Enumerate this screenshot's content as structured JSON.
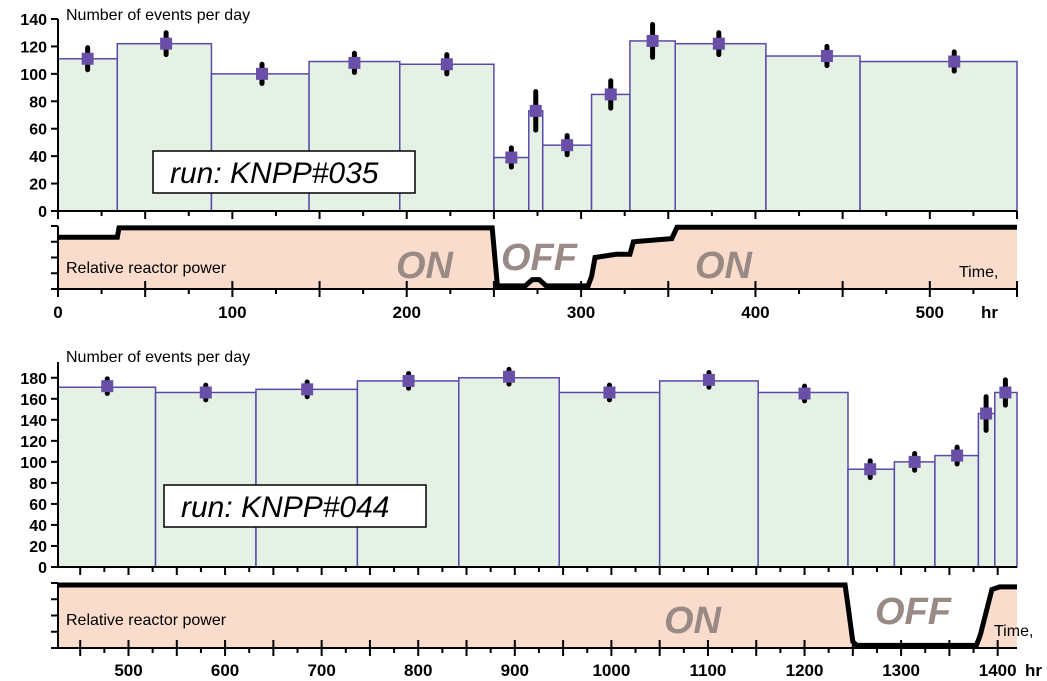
{
  "chart_data": [
    {
      "type": "bar",
      "panel": "top",
      "ylabel": "Number of events per day",
      "run_label": "run: KNPP#035",
      "ylim": [
        0,
        140
      ],
      "yticks": [
        0,
        20,
        40,
        60,
        80,
        100,
        120,
        140
      ],
      "xlim": [
        0,
        550
      ],
      "xticks": [
        0,
        100,
        200,
        300,
        400,
        500
      ],
      "x_unit": "hr",
      "bar_color": "#e4f1e4",
      "bar_edge_color": "#5a4aa8",
      "marker_color": "#6a4fa8",
      "bars": [
        {
          "x0": 0,
          "x1": 34,
          "value": 111
        },
        {
          "x0": 34,
          "x1": 88,
          "value": 122
        },
        {
          "x0": 88,
          "x1": 144,
          "value": 100
        },
        {
          "x0": 144,
          "x1": 196,
          "value": 109
        },
        {
          "x0": 196,
          "x1": 250,
          "value": 107
        },
        {
          "x0": 250,
          "x1": 270,
          "value": 39
        },
        {
          "x0": 270,
          "x1": 278,
          "value": 73
        },
        {
          "x0": 278,
          "x1": 306,
          "value": 48
        },
        {
          "x0": 306,
          "x1": 328,
          "value": 85
        },
        {
          "x0": 328,
          "x1": 354,
          "value": 124
        },
        {
          "x0": 354,
          "x1": 406,
          "value": 122
        },
        {
          "x0": 406,
          "x1": 460,
          "value": 113
        },
        {
          "x0": 460,
          "x1": 550,
          "value": 109
        }
      ],
      "points": [
        {
          "x": 17,
          "y": 111,
          "err": 8
        },
        {
          "x": 62,
          "y": 122,
          "err": 8
        },
        {
          "x": 117,
          "y": 100,
          "err": 7
        },
        {
          "x": 170,
          "y": 108,
          "err": 7
        },
        {
          "x": 223,
          "y": 107,
          "err": 7
        },
        {
          "x": 260,
          "y": 39,
          "err": 7
        },
        {
          "x": 274,
          "y": 73,
          "err": 14
        },
        {
          "x": 292,
          "y": 48,
          "err": 7
        },
        {
          "x": 317,
          "y": 85,
          "err": 10
        },
        {
          "x": 341,
          "y": 124,
          "err": 12
        },
        {
          "x": 379,
          "y": 122,
          "err": 8
        },
        {
          "x": 441,
          "y": 113,
          "err": 7
        },
        {
          "x": 514,
          "y": 109,
          "err": 7
        }
      ]
    },
    {
      "type": "line",
      "panel": "top-power",
      "label": "Relative reactor power",
      "time_label": "Time,",
      "state_on_1": "ON",
      "state_off": "OFF",
      "state_on_2": "ON",
      "fill_color": "#f9dccb",
      "line_color": "#000000",
      "points": [
        [
          0,
          0.82
        ],
        [
          34,
          0.82
        ],
        [
          35,
          0.97
        ],
        [
          249,
          0.97
        ],
        [
          251,
          0.35
        ],
        [
          252,
          0.05
        ],
        [
          268,
          0.05
        ],
        [
          272,
          0.15
        ],
        [
          276,
          0.15
        ],
        [
          280,
          0.05
        ],
        [
          304,
          0.05
        ],
        [
          306,
          0.2
        ],
        [
          308,
          0.5
        ],
        [
          320,
          0.55
        ],
        [
          328,
          0.55
        ],
        [
          330,
          0.75
        ],
        [
          343,
          0.78
        ],
        [
          352,
          0.8
        ],
        [
          355,
          0.98
        ],
        [
          550,
          0.98
        ]
      ]
    },
    {
      "type": "bar",
      "panel": "bottom",
      "ylabel": "Number of events per day",
      "run_label": "run: KNPP#044",
      "ylim": [
        0,
        195
      ],
      "yticks": [
        0,
        20,
        40,
        60,
        80,
        100,
        120,
        140,
        160,
        180
      ],
      "xlim": [
        427,
        1420
      ],
      "xticks": [
        500,
        600,
        700,
        800,
        900,
        1000,
        1100,
        1200,
        1300,
        1400
      ],
      "x_unit": "hr",
      "bar_color": "#e4f1e4",
      "bar_edge_color": "#5a4aa8",
      "marker_color": "#6a4fa8",
      "bars": [
        {
          "x0": 427,
          "x1": 528,
          "value": 171
        },
        {
          "x0": 528,
          "x1": 632,
          "value": 166
        },
        {
          "x0": 632,
          "x1": 737,
          "value": 169
        },
        {
          "x0": 737,
          "x1": 842,
          "value": 177
        },
        {
          "x0": 842,
          "x1": 946,
          "value": 180
        },
        {
          "x0": 946,
          "x1": 1050,
          "value": 166
        },
        {
          "x0": 1050,
          "x1": 1152,
          "value": 177
        },
        {
          "x0": 1152,
          "x1": 1245,
          "value": 166
        },
        {
          "x0": 1245,
          "x1": 1293,
          "value": 93
        },
        {
          "x0": 1293,
          "x1": 1335,
          "value": 100
        },
        {
          "x0": 1335,
          "x1": 1380,
          "value": 106
        },
        {
          "x0": 1380,
          "x1": 1397,
          "value": 146
        },
        {
          "x0": 1397,
          "x1": 1420,
          "value": 166
        }
      ],
      "points": [
        {
          "x": 478,
          "y": 172,
          "err": 7
        },
        {
          "x": 580,
          "y": 166,
          "err": 7
        },
        {
          "x": 685,
          "y": 169,
          "err": 7
        },
        {
          "x": 790,
          "y": 177,
          "err": 7
        },
        {
          "x": 894,
          "y": 181,
          "err": 7
        },
        {
          "x": 998,
          "y": 166,
          "err": 7
        },
        {
          "x": 1101,
          "y": 178,
          "err": 7
        },
        {
          "x": 1200,
          "y": 165,
          "err": 7
        },
        {
          "x": 1268,
          "y": 93,
          "err": 8
        },
        {
          "x": 1314,
          "y": 100,
          "err": 8
        },
        {
          "x": 1358,
          "y": 106,
          "err": 8
        },
        {
          "x": 1388,
          "y": 146,
          "err": 16
        },
        {
          "x": 1408,
          "y": 166,
          "err": 12
        }
      ]
    },
    {
      "type": "line",
      "panel": "bottom-power",
      "label": "Relative reactor power",
      "time_label": "Time,",
      "state_on": "ON",
      "state_off": "OFF",
      "fill_color": "#f9dccb",
      "line_color": "#000000",
      "points": [
        [
          427,
          0.97
        ],
        [
          1242,
          0.97
        ],
        [
          1245,
          0.65
        ],
        [
          1250,
          0.1
        ],
        [
          1254,
          0.04
        ],
        [
          1378,
          0.04
        ],
        [
          1382,
          0.2
        ],
        [
          1388,
          0.55
        ],
        [
          1394,
          0.9
        ],
        [
          1402,
          0.94
        ],
        [
          1420,
          0.94
        ]
      ]
    }
  ],
  "axis_unit": "hr"
}
